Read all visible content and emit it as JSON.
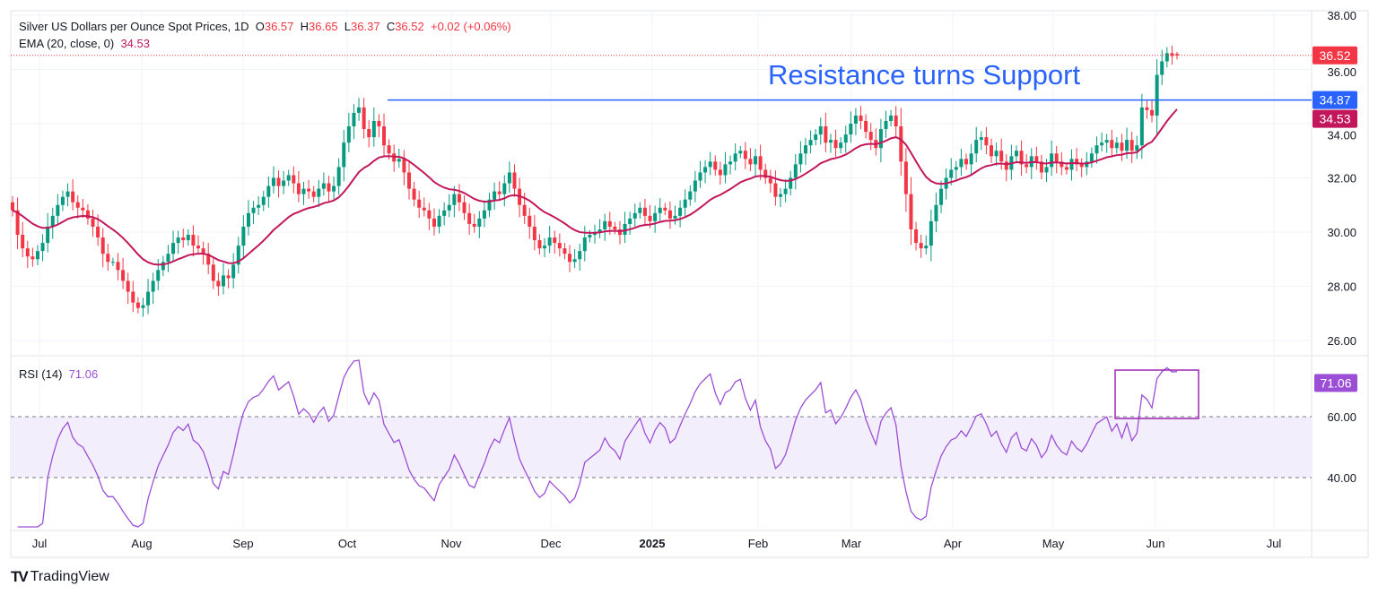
{
  "header": {
    "title": "Silver US Dollars per Ounce Spot Prices, 1D",
    "o_label": "O",
    "o": "36.57",
    "h_label": "H",
    "h": "36.65",
    "l_label": "L",
    "l": "36.37",
    "c_label": "C",
    "c": "36.52",
    "change": "+0.02 (+0.06%)",
    "ema_label": "EMA (20, close, 0)",
    "ema_value": "34.53"
  },
  "rsi": {
    "label": "RSI (14)",
    "value": "71.06"
  },
  "annotation": {
    "text": "Resistance turns Support",
    "level": 34.87,
    "color": "#2962ff"
  },
  "price_tags": {
    "last": "36.52",
    "resistance": "34.87",
    "ema": "34.53"
  },
  "colors": {
    "up": "#089981",
    "down": "#f23645",
    "ema": "#c2185b",
    "rsi": "#9c4fd6",
    "rsi_band": "#f3eefb"
  },
  "footer": {
    "brand": "TradingView"
  },
  "chart_data": {
    "type": "candlestick",
    "price_axis": {
      "ticks": [
        "38.00",
        "36.00",
        "34.00",
        "32.00",
        "30.00",
        "28.00",
        "26.00"
      ],
      "range": [
        25.5,
        38.3
      ]
    },
    "rsi_axis": {
      "ticks": [
        "60.00",
        "40.00"
      ],
      "band": [
        40,
        60
      ]
    },
    "x_labels": [
      "Jul",
      "Aug",
      "Sep",
      "Oct",
      "Nov",
      "Dec",
      "2025",
      "Feb",
      "Mar",
      "Apr",
      "May",
      "Jun",
      "Jul"
    ],
    "last_bar": {
      "open": 36.57,
      "high": 36.65,
      "low": 36.37,
      "close": 36.52
    },
    "closes": [
      30.8,
      29.9,
      29.4,
      29.1,
      29.0,
      29.3,
      29.6,
      30.2,
      30.6,
      31.0,
      31.3,
      31.5,
      31.1,
      30.9,
      30.8,
      30.5,
      30.2,
      29.8,
      29.2,
      28.9,
      28.9,
      28.6,
      28.2,
      27.8,
      27.4,
      27.2,
      27.3,
      27.8,
      28.2,
      28.6,
      28.9,
      29.2,
      29.6,
      29.8,
      29.7,
      29.9,
      29.5,
      29.4,
      29.2,
      28.8,
      28.2,
      28.0,
      28.4,
      28.3,
      28.8,
      29.5,
      30.2,
      30.7,
      30.9,
      31.0,
      31.3,
      31.7,
      32.0,
      31.7,
      31.9,
      32.1,
      31.8,
      31.4,
      31.6,
      31.5,
      31.3,
      31.6,
      31.8,
      31.5,
      31.7,
      32.4,
      33.3,
      33.9,
      34.4,
      34.6,
      33.8,
      33.5,
      34.1,
      33.9,
      33.2,
      32.9,
      32.6,
      32.7,
      32.2,
      31.6,
      31.2,
      30.9,
      30.8,
      30.5,
      30.2,
      30.6,
      30.8,
      31.0,
      31.4,
      31.1,
      30.7,
      30.3,
      30.2,
      30.5,
      30.8,
      31.2,
      31.5,
      31.4,
      31.8,
      32.2,
      31.6,
      31.0,
      30.6,
      30.2,
      29.7,
      29.4,
      29.5,
      29.8,
      29.6,
      29.4,
      29.2,
      28.9,
      29.0,
      29.3,
      29.8,
      29.9,
      30.0,
      30.1,
      30.4,
      30.2,
      30.1,
      29.9,
      30.3,
      30.5,
      30.7,
      30.9,
      30.6,
      30.4,
      30.7,
      30.9,
      30.8,
      30.5,
      30.6,
      30.9,
      31.2,
      31.5,
      31.9,
      32.2,
      32.4,
      32.6,
      32.3,
      32.1,
      32.5,
      32.6,
      32.9,
      33.0,
      32.7,
      32.5,
      32.8,
      32.3,
      32.0,
      31.8,
      31.3,
      31.4,
      31.6,
      32.0,
      32.5,
      32.9,
      33.2,
      33.4,
      33.6,
      33.9,
      33.3,
      33.4,
      33.1,
      33.3,
      33.6,
      34.0,
      34.3,
      34.1,
      33.7,
      33.4,
      33.1,
      33.8,
      34.1,
      34.3,
      33.9,
      32.6,
      31.4,
      30.1,
      29.6,
      29.4,
      29.5,
      30.4,
      31.0,
      31.6,
      32.0,
      32.3,
      32.4,
      32.7,
      32.5,
      32.9,
      33.4,
      33.5,
      33.2,
      32.8,
      33.0,
      32.6,
      32.3,
      32.8,
      33.0,
      32.5,
      32.4,
      32.8,
      32.6,
      32.2,
      32.4,
      32.9,
      32.6,
      32.4,
      32.3,
      32.7,
      32.5,
      32.4,
      32.6,
      32.9,
      33.2,
      33.3,
      33.4,
      33.1,
      33.3,
      33.0,
      33.4,
      33.0,
      33.2,
      34.6,
      34.5,
      34.3,
      35.8,
      36.3,
      36.6,
      36.5,
      36.52
    ]
  }
}
